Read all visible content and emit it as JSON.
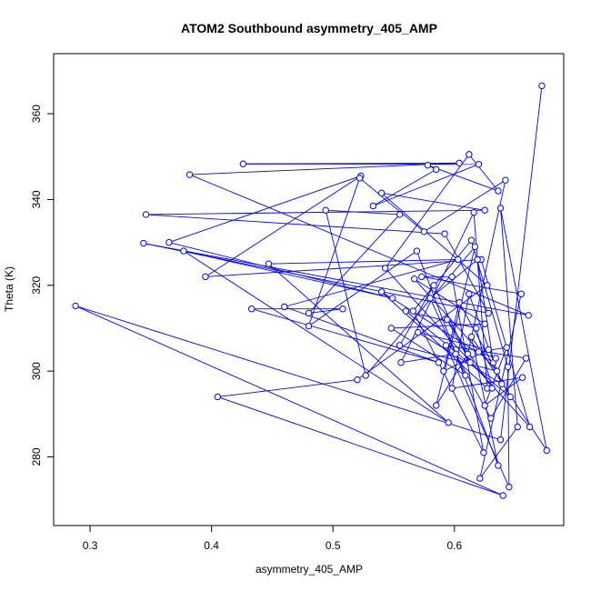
{
  "chart_data": {
    "type": "scatter",
    "title": "ATOM2 Southbound asymmetry_405_AMP",
    "xlabel": "asymmetry_405_AMP",
    "ylabel": "Theta (K)",
    "xlim": [
      0.27,
      0.69
    ],
    "ylim": [
      264,
      374
    ],
    "x_ticks": [
      0.3,
      0.4,
      0.5,
      0.6
    ],
    "y_ticks": [
      280,
      300,
      320,
      340,
      360
    ],
    "x_tick_labels": [
      "0.3",
      "0.4",
      "0.5",
      "0.6"
    ],
    "y_tick_labels": [
      "280",
      "300",
      "320",
      "340",
      "360"
    ],
    "grid": false,
    "legend": "none",
    "connected": true,
    "marker": "open-circle",
    "color": "#0000ff",
    "points": [
      [
        0.672,
        366.5
      ],
      [
        0.638,
        284.0
      ],
      [
        0.288,
        315.2
      ],
      [
        0.64,
        271.0
      ],
      [
        0.405,
        294.0
      ],
      [
        0.52,
        298.0
      ],
      [
        0.627,
        320.0
      ],
      [
        0.54,
        341.5
      ],
      [
        0.625,
        337.5
      ],
      [
        0.346,
        336.5
      ],
      [
        0.592,
        332.0
      ],
      [
        0.628,
        313.5
      ],
      [
        0.344,
        329.8
      ],
      [
        0.661,
        313.0
      ],
      [
        0.382,
        345.8
      ],
      [
        0.604,
        348.5
      ],
      [
        0.426,
        348.3
      ],
      [
        0.62,
        348.2
      ],
      [
        0.533,
        338.5
      ],
      [
        0.585,
        347.0
      ],
      [
        0.578,
        348.0
      ],
      [
        0.636,
        342.0
      ],
      [
        0.612,
        350.5
      ],
      [
        0.543,
        324.0
      ],
      [
        0.662,
        287.0
      ],
      [
        0.622,
        326.0
      ],
      [
        0.395,
        322.0
      ],
      [
        0.523,
        345.5
      ],
      [
        0.365,
        330.0
      ],
      [
        0.549,
        317.0
      ],
      [
        0.377,
        328.0
      ],
      [
        0.595,
        288.0
      ],
      [
        0.447,
        325.0
      ],
      [
        0.603,
        326.0
      ],
      [
        0.46,
        315.0
      ],
      [
        0.587,
        302.0
      ],
      [
        0.433,
        314.5
      ],
      [
        0.508,
        314.5
      ],
      [
        0.48,
        313.5
      ],
      [
        0.555,
        336.5
      ],
      [
        0.494,
        337.5
      ],
      [
        0.527,
        299.0
      ],
      [
        0.617,
        329.0
      ],
      [
        0.585,
        292.0
      ],
      [
        0.611,
        304.0
      ],
      [
        0.642,
        344.5
      ],
      [
        0.575,
        332.5
      ],
      [
        0.522,
        345.0
      ],
      [
        0.48,
        310.5
      ],
      [
        0.569,
        328.0
      ],
      [
        0.636,
        278.0
      ],
      [
        0.614,
        308.0
      ],
      [
        0.676,
        281.5
      ],
      [
        0.638,
        338.0
      ],
      [
        0.652,
        287.0
      ],
      [
        0.621,
        275.0
      ],
      [
        0.655,
        318.0
      ],
      [
        0.573,
        322.0
      ],
      [
        0.598,
        322.0
      ],
      [
        0.624,
        281.0
      ],
      [
        0.566,
        314.0
      ],
      [
        0.614,
        330.5
      ],
      [
        0.644,
        301.0
      ],
      [
        0.645,
        273.0
      ],
      [
        0.593,
        306.0
      ],
      [
        0.659,
        303.0
      ],
      [
        0.63,
        289.0
      ],
      [
        0.601,
        304.0
      ],
      [
        0.556,
        302.0
      ],
      [
        0.616,
        337.0
      ],
      [
        0.627,
        296.0
      ],
      [
        0.54,
        318.5
      ],
      [
        0.632,
        302.0
      ],
      [
        0.619,
        326.0
      ],
      [
        0.58,
        317.0
      ],
      [
        0.609,
        299.0
      ],
      [
        0.548,
        310.0
      ],
      [
        0.625,
        311.0
      ],
      [
        0.567,
        321.5
      ],
      [
        0.635,
        300.0
      ],
      [
        0.555,
        306.0
      ],
      [
        0.583,
        320.0
      ],
      [
        0.613,
        302.0
      ],
      [
        0.594,
        312.0
      ],
      [
        0.631,
        296.0
      ],
      [
        0.618,
        310.0
      ],
      [
        0.56,
        314.0
      ],
      [
        0.646,
        294.0
      ],
      [
        0.604,
        316.0
      ],
      [
        0.591,
        300.0
      ],
      [
        0.628,
        305.0
      ],
      [
        0.57,
        309.0
      ],
      [
        0.639,
        297.0
      ],
      [
        0.612,
        318.0
      ],
      [
        0.598,
        296.0
      ],
      [
        0.656,
        298.5
      ],
      [
        0.625,
        292.0
      ],
      [
        0.643,
        305.5
      ],
      [
        0.62,
        304.5
      ],
      [
        0.634,
        303.0
      ]
    ]
  }
}
